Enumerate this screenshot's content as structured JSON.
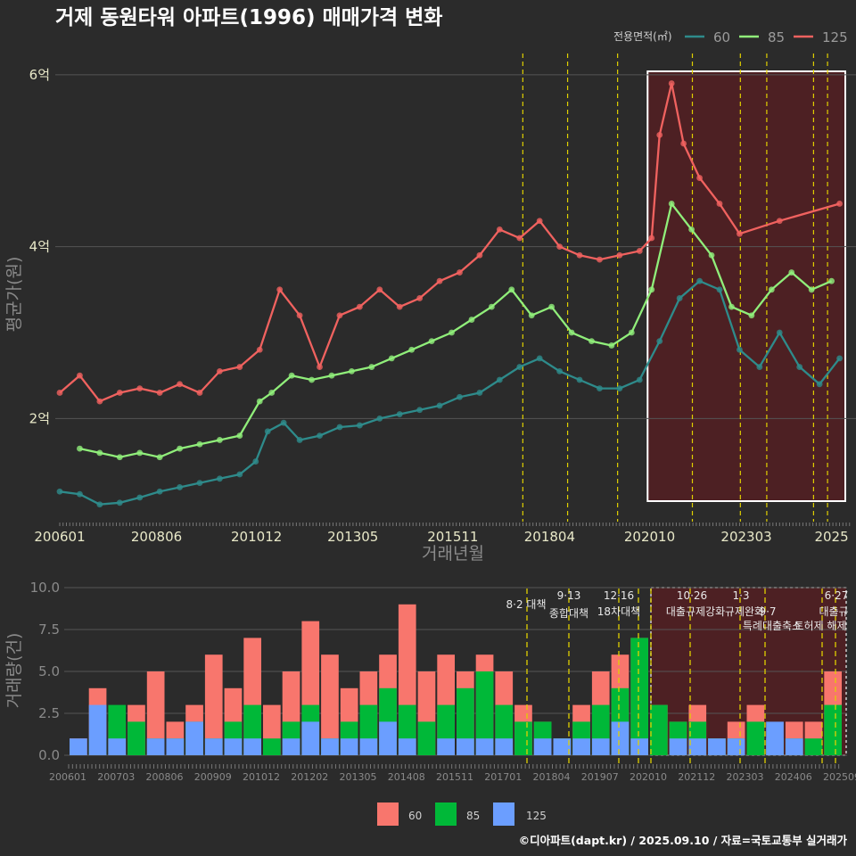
{
  "title": "거제 동원타워 아파트(1996) 매매가격 변화",
  "credit": "©디아파트(dapt.kr) / 2025.09.10 / 자료=국토교통부 실거래가",
  "legend_top": {
    "title": "전용면적(㎡)",
    "items": [
      "60",
      "85",
      "125"
    ]
  },
  "legend_bottom": {
    "items": [
      "60",
      "85",
      "125"
    ]
  },
  "colors": {
    "s60": "#2e8b8b",
    "s85": "#90ee7a",
    "s125": "#f0625f",
    "b60": "#6b9eff",
    "b85": "#00b838",
    "b125": "#f8766d",
    "vline": "#e0d000",
    "highlight": "#5a1e22"
  },
  "announcements": [
    {
      "date": "8·2 대책",
      "name": ""
    },
    {
      "date": "9·13",
      "name": "종합대책"
    },
    {
      "date": "12·16",
      "name": "18차대책"
    },
    {
      "date": "10·26",
      "name": "대출규제강화"
    },
    {
      "date": "1·3",
      "name": "규제완화"
    },
    {
      "date": "9·7",
      "name": "특례대출축소"
    },
    {
      "date": "",
      "name": "토허제 해제"
    },
    {
      "date": "6·27",
      "name": "대출규"
    }
  ],
  "chart_data": [
    {
      "type": "line",
      "title": "거제 동원타워 아파트(1996) 매매가격 변화",
      "xlabel": "거래년월",
      "ylabel": "평균가(원)",
      "x_ticks": [
        "200601",
        "200806",
        "201012",
        "201305",
        "201511",
        "201804",
        "202010",
        "202303",
        "2025"
      ],
      "y_ticks": [
        "2억",
        "4억",
        "6억"
      ],
      "ylim": [
        0.8,
        6.3
      ],
      "y_unit": "억",
      "series": [
        {
          "name": "60",
          "x": [
            2006.0,
            2006.5,
            2007.0,
            2007.5,
            2008.0,
            2008.5,
            2009.0,
            2009.5,
            2010.0,
            2010.5,
            2010.9,
            2011.2,
            2011.6,
            2012.0,
            2012.5,
            2013.0,
            2013.5,
            2014.0,
            2014.5,
            2015.0,
            2015.5,
            2016.0,
            2016.5,
            2017.0,
            2017.5,
            2018.0,
            2018.5,
            2019.0,
            2019.5,
            2020.0,
            2020.5,
            2021.0,
            2021.5,
            2022.0,
            2022.5,
            2023.0,
            2023.5,
            2024.0,
            2024.5,
            2025.0,
            2025.5
          ],
          "y": [
            1.15,
            1.12,
            1.0,
            1.02,
            1.08,
            1.15,
            1.2,
            1.25,
            1.3,
            1.35,
            1.5,
            1.85,
            1.95,
            1.75,
            1.8,
            1.9,
            1.92,
            2.0,
            2.05,
            2.1,
            2.15,
            2.25,
            2.3,
            2.45,
            2.6,
            2.7,
            2.55,
            2.45,
            2.35,
            2.35,
            2.45,
            2.9,
            3.4,
            3.6,
            3.5,
            2.8,
            2.6,
            3.0,
            2.6,
            2.4,
            2.7
          ]
        },
        {
          "name": "85",
          "x": [
            2006.5,
            2007.0,
            2007.5,
            2008.0,
            2008.5,
            2009.0,
            2009.5,
            2010.0,
            2010.5,
            2011.0,
            2011.3,
            2011.8,
            2012.3,
            2012.8,
            2013.3,
            2013.8,
            2014.3,
            2014.8,
            2015.3,
            2015.8,
            2016.3,
            2016.8,
            2017.3,
            2017.8,
            2018.3,
            2018.8,
            2019.3,
            2019.8,
            2020.3,
            2020.8,
            2021.3,
            2021.8,
            2022.3,
            2022.8,
            2023.3,
            2023.8,
            2024.3,
            2024.8,
            2025.3
          ],
          "y": [
            1.65,
            1.6,
            1.55,
            1.6,
            1.55,
            1.65,
            1.7,
            1.75,
            1.8,
            2.2,
            2.3,
            2.5,
            2.45,
            2.5,
            2.55,
            2.6,
            2.7,
            2.8,
            2.9,
            3.0,
            3.15,
            3.3,
            3.5,
            3.2,
            3.3,
            3.0,
            2.9,
            2.85,
            3.0,
            3.5,
            4.5,
            4.2,
            3.9,
            3.3,
            3.2,
            3.5,
            3.7,
            3.5,
            3.6
          ]
        },
        {
          "name": "125",
          "x": [
            2006.0,
            2006.5,
            2007.0,
            2007.5,
            2008.0,
            2008.5,
            2009.0,
            2009.5,
            2010.0,
            2010.5,
            2011.0,
            2011.5,
            2012.0,
            2012.5,
            2013.0,
            2013.5,
            2014.0,
            2014.5,
            2015.0,
            2015.5,
            2016.0,
            2016.5,
            2017.0,
            2017.5,
            2018.0,
            2018.5,
            2019.0,
            2019.5,
            2020.0,
            2020.5,
            2020.8,
            2021.0,
            2021.3,
            2021.6,
            2022.0,
            2022.5,
            2023.0,
            2024.0,
            2025.5
          ],
          "y": [
            2.3,
            2.5,
            2.2,
            2.3,
            2.35,
            2.3,
            2.4,
            2.3,
            2.55,
            2.6,
            2.8,
            3.5,
            3.2,
            2.6,
            3.2,
            3.3,
            3.5,
            3.3,
            3.4,
            3.6,
            3.7,
            3.9,
            4.2,
            4.1,
            4.3,
            4.0,
            3.9,
            3.85,
            3.9,
            3.95,
            4.1,
            5.3,
            5.9,
            5.2,
            4.8,
            4.5,
            4.15,
            4.3,
            4.5
          ]
        }
      ]
    },
    {
      "type": "bar",
      "ylabel": "거래량(건)",
      "y_ticks": [
        "0.0",
        "2.5",
        "5.0",
        "7.5",
        "10.0"
      ],
      "ylim": [
        0,
        10
      ],
      "x_ticks": [
        "200601",
        "200703",
        "200806",
        "200909",
        "201012",
        "201202",
        "201305",
        "201408",
        "201511",
        "201701",
        "201804",
        "201907",
        "202010",
        "202112",
        "202303",
        "202406",
        "202509"
      ],
      "series": [
        {
          "name": "60",
          "values": [
            1,
            3,
            1,
            0,
            1,
            1,
            2,
            1,
            1,
            1,
            0,
            1,
            2,
            1,
            1,
            1,
            2,
            1,
            0,
            1,
            1,
            1,
            1,
            0,
            1,
            1,
            1,
            1,
            2,
            1,
            0,
            1,
            1,
            1,
            1,
            0,
            2,
            1,
            0,
            0
          ]
        },
        {
          "name": "85",
          "values": [
            0,
            1,
            3,
            2,
            1,
            1,
            2,
            1,
            2,
            3,
            1,
            2,
            3,
            1,
            2,
            3,
            4,
            3,
            2,
            3,
            4,
            5,
            3,
            2,
            2,
            1,
            2,
            3,
            4,
            7,
            3,
            2,
            2,
            1,
            1,
            2,
            1,
            1,
            1,
            3
          ]
        },
        {
          "name": "125",
          "values": [
            1,
            4,
            2,
            3,
            5,
            2,
            3,
            6,
            4,
            7,
            3,
            5,
            8,
            6,
            4,
            5,
            6,
            9,
            5,
            6,
            5,
            6,
            5,
            3,
            2,
            1,
            3,
            5,
            6,
            7,
            3,
            2,
            3,
            1,
            2,
            3,
            1,
            2,
            2,
            5
          ]
        }
      ]
    }
  ]
}
